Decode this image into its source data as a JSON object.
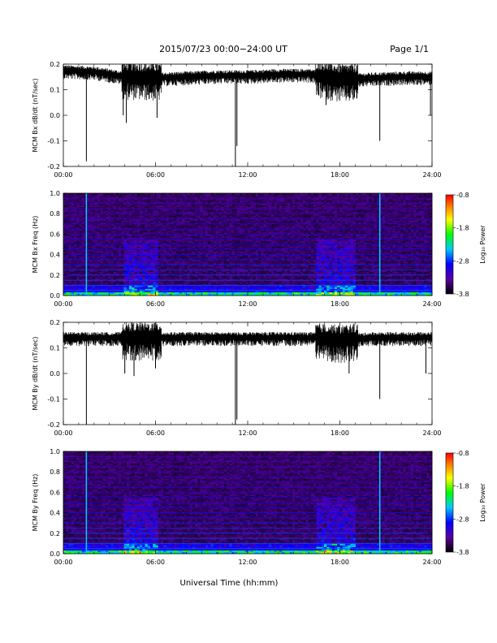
{
  "header": {
    "date_range": "2015/07/23  00:00−24:00 UT",
    "page": "Page 1/1"
  },
  "x_axis_title": "Universal Time (hh:mm)",
  "chart_data": [
    {
      "type": "line",
      "ylabel": "MCM Bx dB/dt (nT/sec)",
      "xlim": [
        0,
        24
      ],
      "x_tick_labels": [
        "00:00",
        "06:00",
        "12:00",
        "18:00",
        "24:00"
      ],
      "ylim": [
        -0.2,
        0.2
      ],
      "y_tick_labels": [
        "0.2",
        "0.1",
        "0.0",
        "-0.1",
        "-0.2"
      ],
      "baseline": [
        [
          0,
          0.175
        ],
        [
          2,
          0.17
        ],
        [
          4,
          0.15
        ],
        [
          6,
          0.145
        ],
        [
          8,
          0.15
        ],
        [
          10,
          0.155
        ],
        [
          12,
          0.155
        ],
        [
          14,
          0.16
        ],
        [
          16,
          0.16
        ],
        [
          18,
          0.14
        ],
        [
          20,
          0.145
        ],
        [
          22,
          0.15
        ],
        [
          24,
          0.15
        ]
      ],
      "spikes": [
        [
          1.5,
          -0.18
        ],
        [
          3.9,
          0.0
        ],
        [
          4.1,
          -0.03
        ],
        [
          6.1,
          -0.01
        ],
        [
          11.2,
          -0.2
        ],
        [
          11.3,
          -0.12
        ],
        [
          17.1,
          0.04
        ],
        [
          20.6,
          -0.1
        ],
        [
          23.9,
          0.0
        ]
      ]
    },
    {
      "type": "heatmap",
      "ylabel": "MCM Bx Freq (Hz)",
      "xlim": [
        0,
        24
      ],
      "x_tick_labels": [
        "00:00",
        "06:00",
        "12:00",
        "18:00",
        "24:00"
      ],
      "ylim": [
        0.0,
        1.0
      ],
      "y_tick_labels": [
        "1.0",
        "0.8",
        "0.6",
        "0.4",
        "0.2",
        "0.0"
      ],
      "colorbar": {
        "label": "Log₁₀ Power",
        "range": [
          -3.8,
          -0.8
        ],
        "tick_labels": [
          "-0.8",
          "-1.8",
          "-2.8",
          "-3.8"
        ]
      },
      "vertical_lines": [
        1.5,
        20.6
      ],
      "active_intervals": [
        [
          4.0,
          6.2
        ],
        [
          16.5,
          19.0
        ]
      ]
    },
    {
      "type": "line",
      "ylabel": "MCM By dB/dt (nT/sec)",
      "xlim": [
        0,
        24
      ],
      "x_tick_labels": [
        "00:00",
        "06:00",
        "12:00",
        "18:00",
        "24:00"
      ],
      "ylim": [
        -0.2,
        0.2
      ],
      "y_tick_labels": [
        "0.2",
        "0.1",
        "0.0",
        "-0.1",
        "-0.2"
      ],
      "baseline": [
        [
          0,
          0.14
        ],
        [
          2,
          0.14
        ],
        [
          4,
          0.14
        ],
        [
          6,
          0.14
        ],
        [
          8,
          0.14
        ],
        [
          10,
          0.14
        ],
        [
          12,
          0.14
        ],
        [
          14,
          0.14
        ],
        [
          16,
          0.14
        ],
        [
          18,
          0.13
        ],
        [
          20,
          0.14
        ],
        [
          22,
          0.14
        ],
        [
          24,
          0.14
        ]
      ],
      "spikes": [
        [
          1.5,
          -0.2
        ],
        [
          4.0,
          0.0
        ],
        [
          4.6,
          -0.01
        ],
        [
          6.0,
          0.02
        ],
        [
          11.2,
          -0.2
        ],
        [
          11.3,
          -0.18
        ],
        [
          18.6,
          0.0
        ],
        [
          20.6,
          -0.1
        ],
        [
          23.6,
          0.0
        ]
      ]
    },
    {
      "type": "heatmap",
      "ylabel": "MCM By Freq (Hz)",
      "xlim": [
        0,
        24
      ],
      "x_tick_labels": [
        "00:00",
        "06:00",
        "12:00",
        "18:00",
        "24:00"
      ],
      "ylim": [
        0.0,
        1.0
      ],
      "y_tick_labels": [
        "1.0",
        "0.8",
        "0.6",
        "0.4",
        "0.2",
        "0.0"
      ],
      "colorbar": {
        "label": "Log₁₀ Power",
        "range": [
          -3.8,
          -0.8
        ],
        "tick_labels": [
          "-0.8",
          "-1.8",
          "-2.8",
          "-3.8"
        ]
      },
      "vertical_lines": [
        1.5,
        20.6
      ],
      "active_intervals": [
        [
          4.0,
          6.2
        ],
        [
          16.5,
          19.0
        ]
      ]
    }
  ]
}
